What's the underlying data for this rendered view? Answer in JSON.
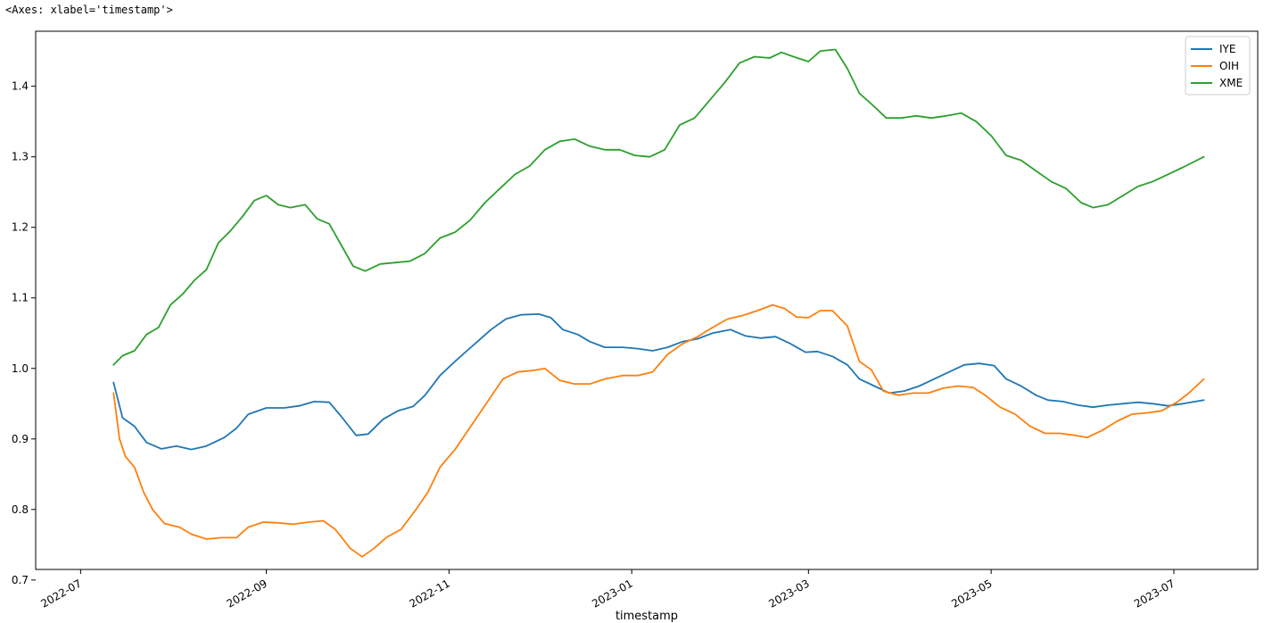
{
  "header": {
    "repr_text": "<Axes: xlabel='timestamp'>"
  },
  "chart_data": {
    "type": "line",
    "xlabel": "timestamp",
    "ylabel": "",
    "title": "",
    "x_axis_kind": "date",
    "xlim": [
      "2022-06-16",
      "2023-07-29"
    ],
    "ylim": [
      0.715,
      1.478
    ],
    "x_ticks": [
      "2022-07-01",
      "2022-09-01",
      "2022-11-01",
      "2023-01-01",
      "2023-03-01",
      "2023-05-01",
      "2023-07-01"
    ],
    "x_tick_labels": [
      "2022-07",
      "2022-09",
      "2022-11",
      "2023-01",
      "2023-03",
      "2023-05",
      "2023-07"
    ],
    "y_ticks": [
      0.7,
      0.8,
      0.9,
      1.0,
      1.1,
      1.2,
      1.3,
      1.4
    ],
    "y_tick_labels": [
      "0.7",
      "0.8",
      "0.9",
      "1.0",
      "1.1",
      "1.2",
      "1.3",
      "1.4"
    ],
    "grid": false,
    "legend_position": "top-right",
    "series": [
      {
        "name": "IYE",
        "color": "#1f77b4",
        "points": [
          [
            "2022-07-12",
            0.98
          ],
          [
            "2022-07-15",
            0.93
          ],
          [
            "2022-07-19",
            0.918
          ],
          [
            "2022-07-23",
            0.895
          ],
          [
            "2022-07-28",
            0.886
          ],
          [
            "2022-08-02",
            0.89
          ],
          [
            "2022-08-07",
            0.885
          ],
          [
            "2022-08-12",
            0.89
          ],
          [
            "2022-08-18",
            0.902
          ],
          [
            "2022-08-22",
            0.915
          ],
          [
            "2022-08-26",
            0.935
          ],
          [
            "2022-09-01",
            0.944
          ],
          [
            "2022-09-07",
            0.944
          ],
          [
            "2022-09-12",
            0.947
          ],
          [
            "2022-09-17",
            0.953
          ],
          [
            "2022-09-22",
            0.952
          ],
          [
            "2022-09-26",
            0.932
          ],
          [
            "2022-10-01",
            0.905
          ],
          [
            "2022-10-05",
            0.907
          ],
          [
            "2022-10-10",
            0.928
          ],
          [
            "2022-10-15",
            0.94
          ],
          [
            "2022-10-20",
            0.946
          ],
          [
            "2022-10-24",
            0.962
          ],
          [
            "2022-10-29",
            0.99
          ],
          [
            "2022-11-03",
            1.01
          ],
          [
            "2022-11-07",
            1.025
          ],
          [
            "2022-11-11",
            1.04
          ],
          [
            "2022-11-15",
            1.055
          ],
          [
            "2022-11-20",
            1.07
          ],
          [
            "2022-11-25",
            1.076
          ],
          [
            "2022-12-01",
            1.077
          ],
          [
            "2022-12-05",
            1.072
          ],
          [
            "2022-12-09",
            1.055
          ],
          [
            "2022-12-14",
            1.048
          ],
          [
            "2022-12-18",
            1.038
          ],
          [
            "2022-12-23",
            1.03
          ],
          [
            "2022-12-29",
            1.03
          ],
          [
            "2023-01-03",
            1.028
          ],
          [
            "2023-01-08",
            1.025
          ],
          [
            "2023-01-13",
            1.03
          ],
          [
            "2023-01-18",
            1.038
          ],
          [
            "2023-01-23",
            1.042
          ],
          [
            "2023-01-28",
            1.05
          ],
          [
            "2023-02-03",
            1.055
          ],
          [
            "2023-02-08",
            1.046
          ],
          [
            "2023-02-13",
            1.043
          ],
          [
            "2023-02-18",
            1.045
          ],
          [
            "2023-02-23",
            1.035
          ],
          [
            "2023-02-28",
            1.023
          ],
          [
            "2023-03-04",
            1.024
          ],
          [
            "2023-03-09",
            1.017
          ],
          [
            "2023-03-14",
            1.005
          ],
          [
            "2023-03-18",
            0.985
          ],
          [
            "2023-03-23",
            0.975
          ],
          [
            "2023-03-28",
            0.965
          ],
          [
            "2023-04-02",
            0.968
          ],
          [
            "2023-04-07",
            0.975
          ],
          [
            "2023-04-12",
            0.985
          ],
          [
            "2023-04-17",
            0.995
          ],
          [
            "2023-04-22",
            1.005
          ],
          [
            "2023-04-27",
            1.007
          ],
          [
            "2023-05-02",
            1.004
          ],
          [
            "2023-05-06",
            0.985
          ],
          [
            "2023-05-11",
            0.975
          ],
          [
            "2023-05-16",
            0.962
          ],
          [
            "2023-05-20",
            0.955
          ],
          [
            "2023-05-25",
            0.953
          ],
          [
            "2023-05-30",
            0.948
          ],
          [
            "2023-06-04",
            0.945
          ],
          [
            "2023-06-09",
            0.948
          ],
          [
            "2023-06-14",
            0.95
          ],
          [
            "2023-06-19",
            0.952
          ],
          [
            "2023-06-24",
            0.95
          ],
          [
            "2023-06-29",
            0.947
          ],
          [
            "2023-07-04",
            0.95
          ],
          [
            "2023-07-11",
            0.955
          ]
        ]
      },
      {
        "name": "OIH",
        "color": "#ff7f0e",
        "points": [
          [
            "2022-07-12",
            0.965
          ],
          [
            "2022-07-14",
            0.9
          ],
          [
            "2022-07-16",
            0.875
          ],
          [
            "2022-07-19",
            0.86
          ],
          [
            "2022-07-22",
            0.825
          ],
          [
            "2022-07-25",
            0.8
          ],
          [
            "2022-07-29",
            0.78
          ],
          [
            "2022-08-03",
            0.775
          ],
          [
            "2022-08-07",
            0.765
          ],
          [
            "2022-08-12",
            0.758
          ],
          [
            "2022-08-17",
            0.76
          ],
          [
            "2022-08-22",
            0.76
          ],
          [
            "2022-08-26",
            0.775
          ],
          [
            "2022-08-31",
            0.782
          ],
          [
            "2022-09-05",
            0.781
          ],
          [
            "2022-09-10",
            0.779
          ],
          [
            "2022-09-15",
            0.782
          ],
          [
            "2022-09-20",
            0.784
          ],
          [
            "2022-09-24",
            0.772
          ],
          [
            "2022-09-29",
            0.745
          ],
          [
            "2022-10-03",
            0.733
          ],
          [
            "2022-10-07",
            0.745
          ],
          [
            "2022-10-11",
            0.76
          ],
          [
            "2022-10-16",
            0.772
          ],
          [
            "2022-10-21",
            0.8
          ],
          [
            "2022-10-25",
            0.825
          ],
          [
            "2022-10-29",
            0.86
          ],
          [
            "2022-11-03",
            0.885
          ],
          [
            "2022-11-07",
            0.91
          ],
          [
            "2022-11-11",
            0.935
          ],
          [
            "2022-11-15",
            0.96
          ],
          [
            "2022-11-19",
            0.985
          ],
          [
            "2022-11-24",
            0.995
          ],
          [
            "2022-11-29",
            0.997
          ],
          [
            "2022-12-03",
            1.0
          ],
          [
            "2022-12-08",
            0.983
          ],
          [
            "2022-12-13",
            0.978
          ],
          [
            "2022-12-18",
            0.978
          ],
          [
            "2022-12-23",
            0.985
          ],
          [
            "2022-12-29",
            0.99
          ],
          [
            "2023-01-03",
            0.99
          ],
          [
            "2023-01-08",
            0.995
          ],
          [
            "2023-01-13",
            1.02
          ],
          [
            "2023-01-18",
            1.035
          ],
          [
            "2023-01-23",
            1.045
          ],
          [
            "2023-01-28",
            1.058
          ],
          [
            "2023-02-02",
            1.07
          ],
          [
            "2023-02-07",
            1.075
          ],
          [
            "2023-02-12",
            1.082
          ],
          [
            "2023-02-17",
            1.09
          ],
          [
            "2023-02-21",
            1.085
          ],
          [
            "2023-02-25",
            1.073
          ],
          [
            "2023-03-01",
            1.072
          ],
          [
            "2023-03-05",
            1.082
          ],
          [
            "2023-03-09",
            1.082
          ],
          [
            "2023-03-14",
            1.06
          ],
          [
            "2023-03-18",
            1.01
          ],
          [
            "2023-03-22",
            0.998
          ],
          [
            "2023-03-26",
            0.968
          ],
          [
            "2023-03-31",
            0.962
          ],
          [
            "2023-04-05",
            0.965
          ],
          [
            "2023-04-10",
            0.965
          ],
          [
            "2023-04-15",
            0.972
          ],
          [
            "2023-04-20",
            0.975
          ],
          [
            "2023-04-25",
            0.973
          ],
          [
            "2023-04-29",
            0.962
          ],
          [
            "2023-05-04",
            0.945
          ],
          [
            "2023-05-09",
            0.935
          ],
          [
            "2023-05-14",
            0.918
          ],
          [
            "2023-05-19",
            0.908
          ],
          [
            "2023-05-24",
            0.908
          ],
          [
            "2023-05-29",
            0.905
          ],
          [
            "2023-06-02",
            0.902
          ],
          [
            "2023-06-07",
            0.912
          ],
          [
            "2023-06-12",
            0.925
          ],
          [
            "2023-06-17",
            0.935
          ],
          [
            "2023-06-22",
            0.937
          ],
          [
            "2023-06-27",
            0.94
          ],
          [
            "2023-07-02",
            0.952
          ],
          [
            "2023-07-06",
            0.965
          ],
          [
            "2023-07-11",
            0.985
          ]
        ]
      },
      {
        "name": "XME",
        "color": "#2ca02c",
        "points": [
          [
            "2022-07-12",
            1.005
          ],
          [
            "2022-07-15",
            1.018
          ],
          [
            "2022-07-19",
            1.025
          ],
          [
            "2022-07-23",
            1.048
          ],
          [
            "2022-07-27",
            1.058
          ],
          [
            "2022-07-31",
            1.09
          ],
          [
            "2022-08-04",
            1.105
          ],
          [
            "2022-08-08",
            1.125
          ],
          [
            "2022-08-12",
            1.14
          ],
          [
            "2022-08-16",
            1.178
          ],
          [
            "2022-08-20",
            1.195
          ],
          [
            "2022-08-24",
            1.215
          ],
          [
            "2022-08-28",
            1.238
          ],
          [
            "2022-09-01",
            1.245
          ],
          [
            "2022-09-05",
            1.232
          ],
          [
            "2022-09-09",
            1.228
          ],
          [
            "2022-09-14",
            1.232
          ],
          [
            "2022-09-18",
            1.212
          ],
          [
            "2022-09-22",
            1.205
          ],
          [
            "2022-09-26",
            1.175
          ],
          [
            "2022-09-30",
            1.145
          ],
          [
            "2022-10-04",
            1.138
          ],
          [
            "2022-10-09",
            1.148
          ],
          [
            "2022-10-14",
            1.15
          ],
          [
            "2022-10-19",
            1.152
          ],
          [
            "2022-10-24",
            1.163
          ],
          [
            "2022-10-29",
            1.185
          ],
          [
            "2022-11-03",
            1.193
          ],
          [
            "2022-11-08",
            1.21
          ],
          [
            "2022-11-13",
            1.235
          ],
          [
            "2022-11-18",
            1.255
          ],
          [
            "2022-11-23",
            1.275
          ],
          [
            "2022-11-28",
            1.287
          ],
          [
            "2022-12-03",
            1.31
          ],
          [
            "2022-12-08",
            1.322
          ],
          [
            "2022-12-13",
            1.325
          ],
          [
            "2022-12-18",
            1.315
          ],
          [
            "2022-12-23",
            1.31
          ],
          [
            "2022-12-28",
            1.31
          ],
          [
            "2023-01-02",
            1.302
          ],
          [
            "2023-01-07",
            1.3
          ],
          [
            "2023-01-12",
            1.31
          ],
          [
            "2023-01-17",
            1.345
          ],
          [
            "2023-01-22",
            1.355
          ],
          [
            "2023-01-27",
            1.38
          ],
          [
            "2023-02-01",
            1.405
          ],
          [
            "2023-02-06",
            1.433
          ],
          [
            "2023-02-11",
            1.442
          ],
          [
            "2023-02-16",
            1.44
          ],
          [
            "2023-02-20",
            1.448
          ],
          [
            "2023-02-24",
            1.442
          ],
          [
            "2023-03-01",
            1.435
          ],
          [
            "2023-03-05",
            1.45
          ],
          [
            "2023-03-10",
            1.452
          ],
          [
            "2023-03-14",
            1.425
          ],
          [
            "2023-03-18",
            1.39
          ],
          [
            "2023-03-22",
            1.375
          ],
          [
            "2023-03-27",
            1.355
          ],
          [
            "2023-04-01",
            1.355
          ],
          [
            "2023-04-06",
            1.358
          ],
          [
            "2023-04-11",
            1.355
          ],
          [
            "2023-04-16",
            1.358
          ],
          [
            "2023-04-21",
            1.362
          ],
          [
            "2023-04-26",
            1.35
          ],
          [
            "2023-05-01",
            1.33
          ],
          [
            "2023-05-06",
            1.302
          ],
          [
            "2023-05-11",
            1.295
          ],
          [
            "2023-05-16",
            1.28
          ],
          [
            "2023-05-21",
            1.265
          ],
          [
            "2023-05-26",
            1.255
          ],
          [
            "2023-05-31",
            1.235
          ],
          [
            "2023-06-04",
            1.228
          ],
          [
            "2023-06-09",
            1.232
          ],
          [
            "2023-06-14",
            1.245
          ],
          [
            "2023-06-19",
            1.258
          ],
          [
            "2023-06-24",
            1.265
          ],
          [
            "2023-06-29",
            1.275
          ],
          [
            "2023-07-04",
            1.285
          ],
          [
            "2023-07-11",
            1.3
          ]
        ]
      }
    ]
  }
}
